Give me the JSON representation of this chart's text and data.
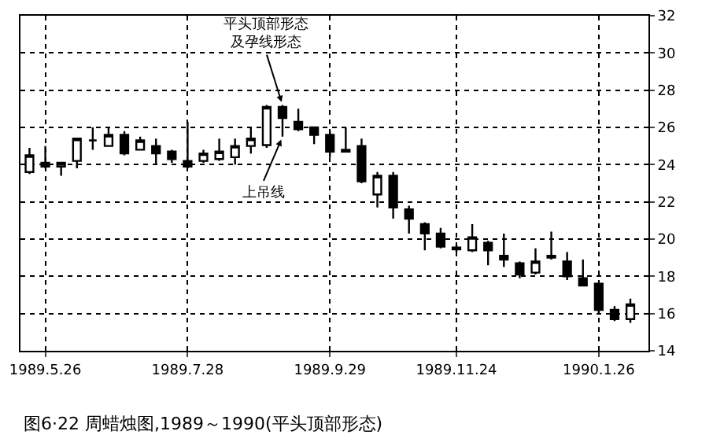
{
  "chart_data": {
    "type": "candlestick",
    "color": "#000000",
    "x": [
      "1989-05-19",
      "1989-05-26",
      "1989-06-02",
      "1989-06-09",
      "1989-06-16",
      "1989-06-23",
      "1989-06-30",
      "1989-07-07",
      "1989-07-14",
      "1989-07-21",
      "1989-07-28",
      "1989-08-04",
      "1989-08-11",
      "1989-08-18",
      "1989-08-25",
      "1989-09-01",
      "1989-09-08",
      "1989-09-15",
      "1989-09-22",
      "1989-09-29",
      "1989-10-06",
      "1989-10-13",
      "1989-10-20",
      "1989-10-27",
      "1989-11-03",
      "1989-11-10",
      "1989-11-17",
      "1989-11-24",
      "1989-12-01",
      "1989-12-08",
      "1989-12-15",
      "1989-12-22",
      "1989-12-29",
      "1990-01-05",
      "1990-01-12",
      "1990-01-19",
      "1990-01-26",
      "1990-02-02",
      "1990-02-09"
    ],
    "ohlc": [
      [
        23.6,
        24.9,
        23.5,
        24.5
      ],
      [
        24.1,
        25.0,
        23.8,
        23.9
      ],
      [
        23.9,
        24.1,
        23.4,
        24.1
      ],
      [
        24.2,
        25.4,
        23.8,
        25.4
      ],
      [
        25.3,
        26.0,
        24.8,
        25.3
      ],
      [
        25.0,
        26.0,
        25.0,
        25.6
      ],
      [
        25.6,
        25.8,
        24.5,
        24.6
      ],
      [
        24.8,
        25.5,
        24.8,
        25.3
      ],
      [
        25.0,
        25.4,
        24.0,
        24.6
      ],
      [
        24.7,
        24.8,
        24.1,
        24.3
      ],
      [
        24.2,
        26.3,
        23.8,
        23.9
      ],
      [
        24.2,
        24.8,
        24.1,
        24.6
      ],
      [
        24.3,
        25.4,
        24.2,
        24.7
      ],
      [
        24.4,
        25.4,
        24.0,
        25.0
      ],
      [
        25.0,
        26.0,
        24.6,
        25.4
      ],
      [
        25.05,
        27.2,
        24.9,
        27.1
      ],
      [
        27.1,
        27.2,
        25.5,
        26.5
      ],
      [
        26.3,
        27.0,
        25.8,
        25.9
      ],
      [
        26.0,
        26.0,
        25.1,
        25.6
      ],
      [
        25.6,
        25.8,
        24.4,
        24.7
      ],
      [
        24.8,
        26.0,
        24.7,
        24.7
      ],
      [
        25.0,
        25.4,
        23.0,
        23.1
      ],
      [
        22.4,
        23.6,
        21.7,
        23.4
      ],
      [
        23.4,
        23.6,
        21.1,
        21.7
      ],
      [
        21.6,
        21.8,
        20.3,
        21.1
      ],
      [
        20.8,
        20.9,
        19.4,
        20.3
      ],
      [
        20.3,
        20.6,
        19.5,
        19.6
      ],
      [
        19.55,
        19.7,
        19.3,
        19.45
      ],
      [
        19.4,
        20.8,
        19.3,
        20.1
      ],
      [
        19.8,
        19.9,
        18.6,
        19.4
      ],
      [
        19.1,
        20.3,
        18.5,
        18.9
      ],
      [
        18.7,
        18.8,
        17.9,
        18.1
      ],
      [
        18.2,
        19.5,
        18.1,
        18.8
      ],
      [
        19.1,
        20.4,
        18.9,
        19.0
      ],
      [
        18.8,
        19.3,
        17.8,
        18.0
      ],
      [
        17.9,
        18.9,
        17.5,
        17.5
      ],
      [
        17.6,
        17.7,
        16.0,
        16.2
      ],
      [
        16.2,
        16.4,
        15.6,
        15.7
      ],
      [
        15.7,
        16.8,
        15.5,
        16.5
      ]
    ],
    "xlim": [
      "1989-05-15",
      "1990-02-17"
    ],
    "xticks": [
      {
        "value": "1989-05-26",
        "label": "1989.5.26"
      },
      {
        "value": "1989-07-28",
        "label": "1989.7.28"
      },
      {
        "value": "1989-09-29",
        "label": "1989.9.29"
      },
      {
        "value": "1989-11-24",
        "label": "1989.11.24"
      },
      {
        "value": "1990-01-26",
        "label": "1990.1.26"
      }
    ],
    "ylim": [
      14,
      32
    ],
    "yticks": [
      14,
      16,
      18,
      20,
      22,
      24,
      26,
      28,
      30,
      32
    ],
    "grid": true,
    "line_style": "dotted",
    "annotations": [
      {
        "text": "平头顶部形态及孕线形态",
        "x": "1989-09-08",
        "y": 27.2
      },
      {
        "text": "上吊线",
        "x": "1989-09-08",
        "y": 25.5
      },
      "图6·22 周蜡烛图,1989～1990(平头顶部形态)"
    ]
  }
}
